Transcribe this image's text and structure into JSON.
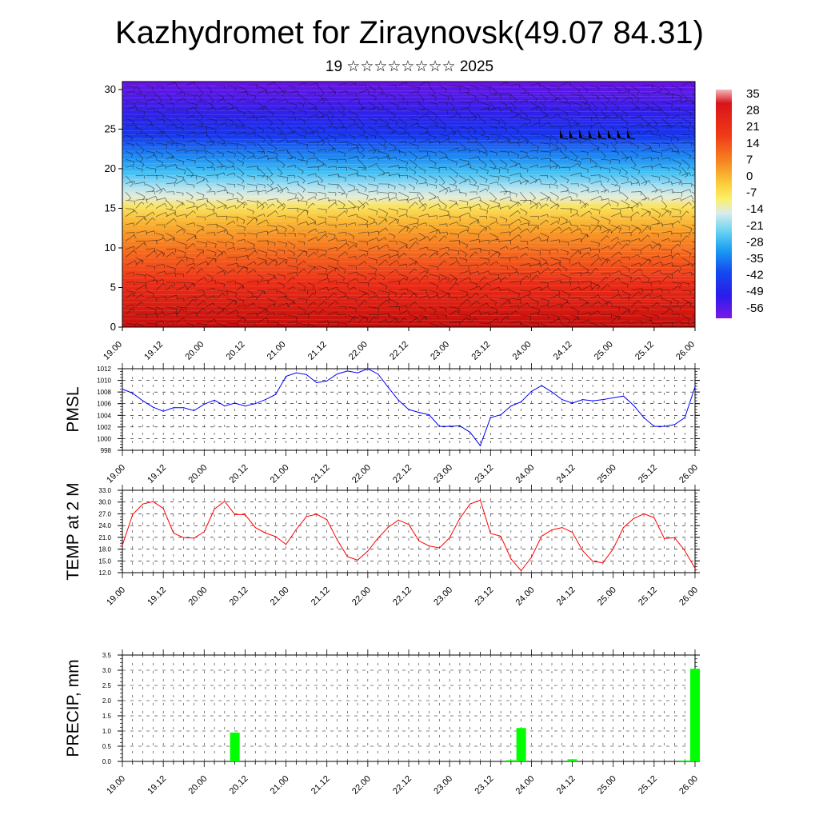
{
  "title": "Kazhydromet for Ziraynovsk(49.07 84.31)",
  "subtitle": "19 ☆☆☆☆☆☆☆☆ 2025",
  "time_labels": [
    "19.00",
    "19.12",
    "20.00",
    "20.12",
    "21.00",
    "21.12",
    "22.00",
    "22.12",
    "23.00",
    "23.12",
    "24.00",
    "24.12",
    "25.00",
    "25.12",
    "26.00"
  ],
  "chart_data": [
    {
      "type": "heatmap",
      "description_of_field": "temperature cross-section with wind barbs",
      "x_labels": [
        "19.00",
        "19.12",
        "20.00",
        "20.12",
        "21.00",
        "21.12",
        "22.00",
        "22.12",
        "23.00",
        "23.12",
        "24.00",
        "24.12",
        "25.00",
        "25.12",
        "26.00"
      ],
      "y_ticks": [
        0,
        5,
        10,
        15,
        20,
        25,
        30
      ],
      "ylim": [
        0,
        31
      ],
      "colorbar_labels": [
        "35",
        "28",
        "21",
        "14",
        "7",
        "0",
        "-7",
        "-14",
        "-21",
        "-28",
        "-35",
        "-42",
        "-49",
        "-56"
      ],
      "colorbar_range": [
        -63,
        42
      ],
      "colors": [
        "#6a11e6",
        "#3a1bea",
        "#1230f0",
        "#1e63f0",
        "#1c9ef2",
        "#37c8f2",
        "#8fdcf0",
        "#d6ecee",
        "#fbf06a",
        "#fbdc3c",
        "#f9b52c",
        "#f78d24",
        "#f5621e",
        "#ef3018",
        "#d8140e",
        "#c70d0c"
      ]
    },
    {
      "type": "line",
      "ylabel": "PMSL",
      "ylim": [
        998,
        1012
      ],
      "y_ticks": [
        998,
        1000,
        1002,
        1004,
        1006,
        1008,
        1010,
        1012
      ],
      "x": [
        0,
        3,
        6,
        9,
        12,
        15,
        18,
        21,
        24,
        27,
        30,
        33,
        36,
        39,
        42,
        45,
        48,
        51,
        54,
        57,
        60,
        63,
        66,
        69,
        72,
        75,
        78,
        81,
        84,
        87,
        90,
        93,
        96,
        99,
        102,
        105,
        108,
        111,
        114,
        117,
        120,
        123,
        126,
        129,
        132,
        135,
        138,
        141,
        144,
        147,
        150,
        153,
        156,
        159,
        162,
        165,
        168
      ],
      "series": [
        {
          "color": "#0000ff",
          "values": [
            1008.5,
            1007.8,
            1006.5,
            1005.4,
            1004.7,
            1005.3,
            1005.3,
            1004.8,
            1005.9,
            1006.6,
            1005.6,
            1006.1,
            1005.6,
            1006.0,
            1006.7,
            1007.6,
            1010.7,
            1011.3,
            1011.0,
            1009.6,
            1009.9,
            1011.1,
            1011.6,
            1011.3,
            1012.0,
            1011.1,
            1008.8,
            1006.6,
            1005.0,
            1004.5,
            1004.1,
            1002.1,
            1002.1,
            1002.2,
            1001.1,
            998.8,
            1003.6,
            1004.1,
            1005.6,
            1006.3,
            1008.1,
            1009.1,
            1008.0,
            1006.7,
            1006.1,
            1006.7,
            1006.5,
            1006.7,
            1007.0,
            1007.3,
            1005.7,
            1003.6,
            1002.1,
            1002.1,
            1002.4,
            1003.6,
            1008.9
          ]
        }
      ]
    },
    {
      "type": "line",
      "ylabel": "TEMP at 2 M",
      "ylim": [
        12,
        33
      ],
      "y_ticks": [
        "12.0",
        "15.0",
        "18.0",
        "21.0",
        "24.0",
        "27.0",
        "30.0",
        "33.0"
      ],
      "x": [
        0,
        3,
        6,
        9,
        12,
        15,
        18,
        21,
        24,
        27,
        30,
        33,
        36,
        39,
        42,
        45,
        48,
        51,
        54,
        57,
        60,
        63,
        66,
        69,
        72,
        75,
        78,
        81,
        84,
        87,
        90,
        93,
        96,
        99,
        102,
        105,
        108,
        111,
        114,
        117,
        120,
        123,
        126,
        129,
        132,
        135,
        138,
        141,
        144,
        147,
        150,
        153,
        156,
        159,
        162,
        165,
        168
      ],
      "series": [
        {
          "color": "#ff0000",
          "values": [
            19.0,
            26.8,
            29.5,
            30.1,
            28.4,
            22.1,
            20.9,
            20.8,
            22.4,
            28.2,
            30.2,
            26.8,
            26.8,
            23.5,
            22.1,
            21.2,
            19.2,
            23.0,
            26.3,
            26.9,
            25.5,
            20.4,
            16.1,
            15.2,
            17.5,
            20.8,
            23.6,
            25.4,
            24.3,
            20.1,
            18.8,
            18.3,
            20.9,
            25.8,
            29.5,
            30.5,
            22.0,
            21.3,
            15.5,
            12.5,
            15.9,
            21.3,
            22.9,
            23.5,
            22.3,
            17.6,
            14.9,
            14.5,
            18.1,
            23.5,
            25.8,
            27.0,
            26.0,
            20.7,
            20.9,
            17.6,
            13.1
          ]
        }
      ]
    },
    {
      "type": "bar",
      "ylabel": "PRECIP, mm",
      "ylim": [
        0,
        3.5
      ],
      "y_ticks": [
        "0.0",
        "0.5",
        "1.0",
        "1.5",
        "2.0",
        "2.5",
        "3.0",
        "3.5"
      ],
      "color": "#00ff00",
      "x": [
        33,
        114,
        117,
        132,
        165,
        168
      ],
      "values": [
        0.95,
        0.04,
        1.1,
        0.07,
        0.03,
        3.05
      ]
    }
  ]
}
